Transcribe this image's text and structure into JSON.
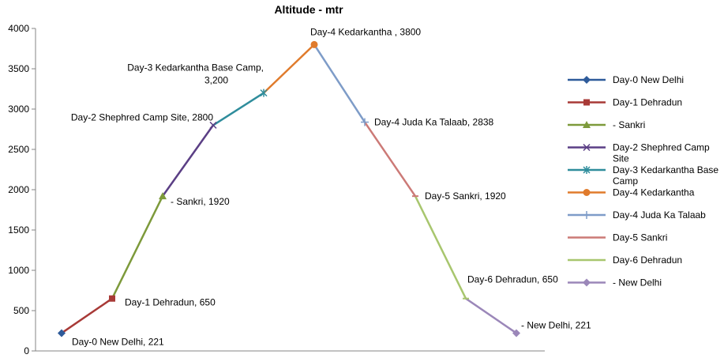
{
  "chart_data": {
    "type": "line",
    "title": "Altitude - mtr",
    "xlabel": "",
    "ylabel": "",
    "ylim": [
      0,
      4000
    ],
    "y_ticks": [
      "0",
      "500",
      "1000",
      "1500",
      "2000",
      "2500",
      "3000",
      "3500",
      "4000"
    ],
    "grid": false,
    "legend_position": "right",
    "points": [
      {
        "name": "Day-0 New Delhi",
        "y": 221,
        "label": "Day-0 New Delhi, 221",
        "color": "#2e5b9a",
        "marker": "diamond"
      },
      {
        "name": "Day-1 Dehradun",
        "y": 650,
        "label": "Day-1 Dehradun, 650",
        "color": "#a83a37",
        "marker": "square"
      },
      {
        "name": "- Sankri",
        "y": 1920,
        "label": "- Sankri, 1920",
        "color": "#7d9a3b",
        "marker": "triangle"
      },
      {
        "name": "Day-2 Shephred Camp Site",
        "y": 2800,
        "label": "Day-2 Shephred Camp Site, 2800",
        "color": "#5b3f85",
        "marker": "x"
      },
      {
        "name": "Day-3 Kedarkantha Base Camp",
        "y": 3200,
        "label": "Day-3 Kedarkantha Base Camp, 3,200",
        "color": "#2f8d9c",
        "marker": "star"
      },
      {
        "name": "Day-4 Kedarkantha",
        "y": 3800,
        "label": "Day-4 Kedarkantha , 3800",
        "color": "#e07b2c",
        "marker": "circle"
      },
      {
        "name": "Day-4 Juda Ka Talaab",
        "y": 2838,
        "label": "Day-4 Juda Ka Talaab, 2838",
        "color": "#7e9cc8",
        "marker": "plus"
      },
      {
        "name": "Day-5 Sankri",
        "y": 1920,
        "label": "Day-5 Sankri, 1920",
        "color": "#cc7a77",
        "marker": "dash"
      },
      {
        "name": "Day-6 Dehradun",
        "y": 650,
        "label": "Day-6 Dehradun, 650",
        "color": "#a8c66e",
        "marker": "dash"
      },
      {
        "name": "- New Delhi",
        "y": 221,
        "label": "- New Delhi, 221",
        "color": "#9b87b9",
        "marker": "diamond"
      }
    ]
  }
}
